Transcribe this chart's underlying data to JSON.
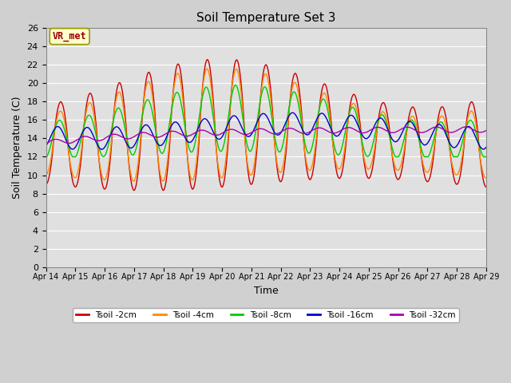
{
  "title": "Soil Temperature Set 3",
  "xlabel": "Time",
  "ylabel": "Soil Temperature (C)",
  "ylim": [
    0,
    26
  ],
  "yticks": [
    0,
    2,
    4,
    6,
    8,
    10,
    12,
    14,
    16,
    18,
    20,
    22,
    24,
    26
  ],
  "xtick_labels": [
    "Apr 14",
    "Apr 15",
    "Apr 16",
    "Apr 17",
    "Apr 18",
    "Apr 19",
    "Apr 20",
    "Apr 21",
    "Apr 22",
    "Apr 23",
    "Apr 24",
    "Apr 25",
    "Apr 26",
    "Apr 27",
    "Apr 28",
    "Apr 29"
  ],
  "colors": {
    "Tsoil -2cm": "#cc0000",
    "Tsoil -4cm": "#ff8800",
    "Tsoil -8cm": "#00cc00",
    "Tsoil -16cm": "#0000cc",
    "Tsoil -32cm": "#aa00aa"
  },
  "legend_labels": [
    "Tsoil -2cm",
    "Tsoil -4cm",
    "Tsoil -8cm",
    "Tsoil -16cm",
    "Tsoil -32cm"
  ],
  "annotation_text": "VR_met",
  "annotation_color": "#990000",
  "annotation_bg": "#ffffcc",
  "annotation_edge": "#999900",
  "fig_bg": "#d0d0d0",
  "plot_bg": "#e0e0e0",
  "grid_color": "#ffffff",
  "linewidth": 1.0
}
